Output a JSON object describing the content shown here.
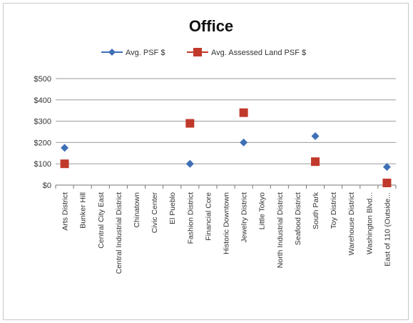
{
  "chart_data": {
    "type": "scatter",
    "title": "Office",
    "categories": [
      "Arts District",
      "Bunker Hill",
      "Central City East",
      "Central Industrial District",
      "Chinatown",
      "Civic Center",
      "El Pueblo",
      "Fashion District",
      "Financial Core",
      "Historic Downtown",
      "Jewelry District",
      "Little Tokyo",
      "North Industrial District",
      "Seafood District",
      "South Park",
      "Toy District",
      "Warehouse District",
      "Washington Blvd...",
      "East of 110 (Outside..."
    ],
    "series": [
      {
        "name": "Avg. PSF $",
        "color": "#3f6fb5",
        "marker": "diamond",
        "values": [
          175,
          null,
          null,
          null,
          null,
          null,
          null,
          100,
          null,
          null,
          200,
          null,
          null,
          null,
          230,
          null,
          null,
          null,
          85
        ]
      },
      {
        "name": "Avg. Assessed Land PSF $",
        "color": "#c0392b",
        "marker": "square",
        "values": [
          100,
          null,
          null,
          null,
          null,
          null,
          null,
          290,
          null,
          null,
          340,
          null,
          null,
          null,
          110,
          null,
          null,
          null,
          10
        ]
      }
    ],
    "ylim": [
      0,
      500
    ],
    "yticks": [
      "$0",
      "$100",
      "$200",
      "$300",
      "$400",
      "$500"
    ],
    "ytick_values": [
      0,
      100,
      200,
      300,
      400,
      500
    ],
    "grid": true,
    "legend_position": "top"
  }
}
